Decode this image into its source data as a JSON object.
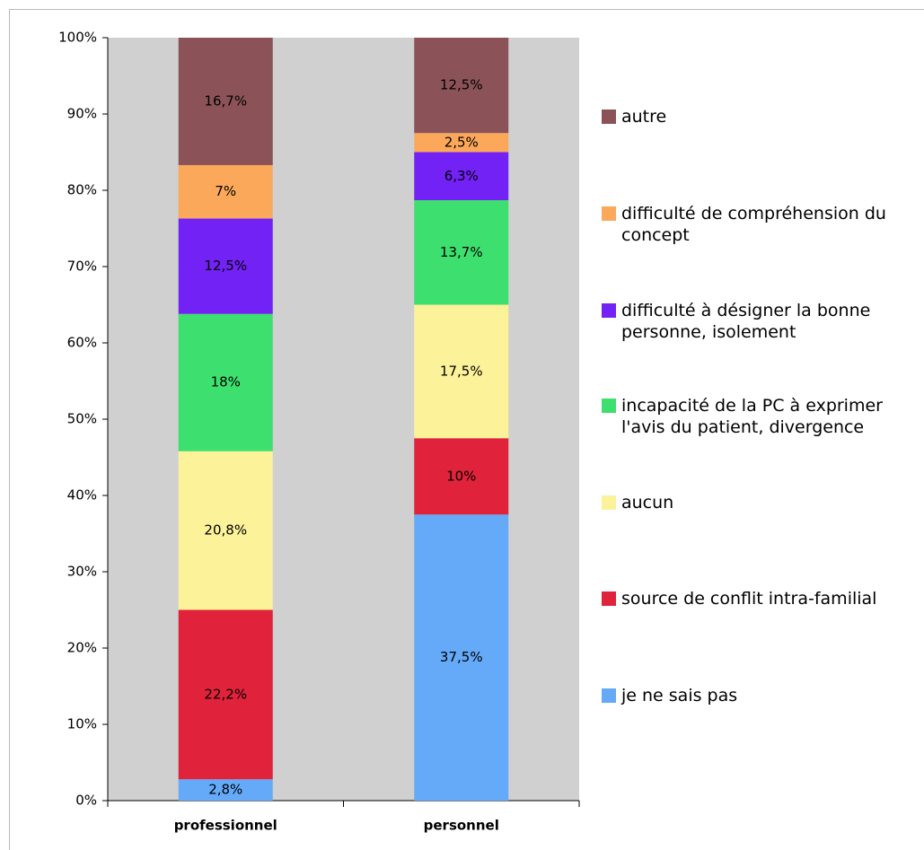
{
  "chart_data": {
    "type": "stacked_bar",
    "categories": [
      "professionnel",
      "personnel"
    ],
    "series": [
      {
        "name": "je ne sais pas",
        "color": "#64aaf8",
        "values": [
          2.8,
          37.5
        ],
        "value_labels": [
          "2,8%",
          "37,5%"
        ]
      },
      {
        "name": "source de conflit intra-familial",
        "color": "#e0233a",
        "values": [
          22.2,
          10
        ],
        "value_labels": [
          "22,2%",
          "10%"
        ]
      },
      {
        "name": "aucun",
        "color": "#fbf29a",
        "values": [
          20.8,
          17.5
        ],
        "value_labels": [
          "20,8%",
          "17,5%"
        ]
      },
      {
        "name": "incapacité de la PC à exprimer l'avis du patient, divergence",
        "color": "#3de06e",
        "values": [
          18,
          13.7
        ],
        "value_labels": [
          "18%",
          "13,7%"
        ]
      },
      {
        "name": "difficulté à désigner la bonne personne, isolement",
        "color": "#7222f5",
        "values": [
          12.5,
          6.3
        ],
        "value_labels": [
          "12,5%",
          "6,3%"
        ]
      },
      {
        "name": "difficulté de compréhension du concept",
        "color": "#fca85a",
        "values": [
          7,
          2.5
        ],
        "value_labels": [
          "7%",
          "2,5%"
        ]
      },
      {
        "name": "autre",
        "color": "#8b5357",
        "values": [
          16.7,
          12.5
        ],
        "value_labels": [
          "16,7%",
          "12,5%"
        ]
      }
    ],
    "ylim": [
      0,
      100
    ],
    "yticks": [
      {
        "value": 0,
        "label": "0%"
      },
      {
        "value": 10,
        "label": "10%"
      },
      {
        "value": 20,
        "label": "20%"
      },
      {
        "value": 30,
        "label": "30%"
      },
      {
        "value": 40,
        "label": "40%"
      },
      {
        "value": 50,
        "label": "50%"
      },
      {
        "value": 60,
        "label": "60%"
      },
      {
        "value": 70,
        "label": "70%"
      },
      {
        "value": 80,
        "label": "80%"
      },
      {
        "value": 90,
        "label": "90%"
      },
      {
        "value": 100,
        "label": "100%"
      }
    ],
    "legend": "right"
  }
}
